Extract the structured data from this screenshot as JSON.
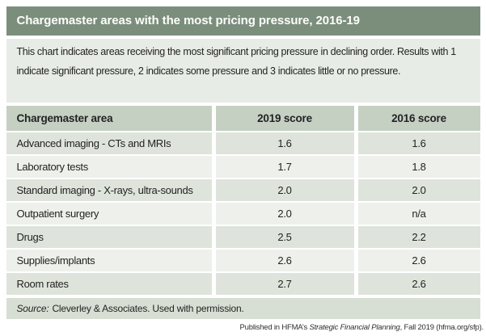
{
  "title": "Chargemaster areas with the most pricing pressure, 2016-19",
  "description": "This chart indicates areas receiving the most significant pricing pressure in declining order. Results with 1 indicate significant pressure, 2 indicates some pressure and 3 indicates little or no pressure.",
  "table": {
    "headers": [
      "Chargemaster area",
      "2019 score",
      "2016 score"
    ],
    "rows": [
      {
        "area": "Advanced imaging - CTs and MRIs",
        "score_2019": "1.6",
        "score_2016": "1.6"
      },
      {
        "area": "Laboratory tests",
        "score_2019": "1.7",
        "score_2016": "1.8"
      },
      {
        "area": "Standard imaging - X-rays, ultra-sounds",
        "score_2019": "2.0",
        "score_2016": "2.0"
      },
      {
        "area": "Outpatient surgery",
        "score_2019": "2.0",
        "score_2016": "n/a"
      },
      {
        "area": "Drugs",
        "score_2019": "2.5",
        "score_2016": "2.2"
      },
      {
        "area": "Supplies/implants",
        "score_2019": "2.6",
        "score_2016": "2.6"
      },
      {
        "area": "Room rates",
        "score_2019": "2.7",
        "score_2016": "2.6"
      }
    ]
  },
  "source": {
    "label": "Source:",
    "text": "Cleverley & Associates. Used with permission."
  },
  "footer": {
    "prefix": "Published in HFMA’s ",
    "italic": "Strategic Financial Planning",
    "suffix": ", Fall 2019 (hfma.org/sfp)."
  },
  "colors": {
    "title_bg": "#7b8e7c",
    "title_text": "#fdfdfb",
    "description_bg": "#e8ece6",
    "header_row_bg": "#c5d0c3",
    "row_dark_bg": "#dee4db",
    "row_light_bg": "#eef0ec",
    "source_bg": "#d7ded4",
    "text": "#232323"
  },
  "chart_data": {
    "type": "table",
    "title": "Chargemaster areas with the most pricing pressure, 2016-19",
    "subtitle": "This chart indicates areas receiving the most significant pricing pressure in declining order. Results with 1 indicate significant pressure, 2 indicates some pressure and 3 indicates little or no pressure.",
    "columns": [
      "Chargemaster area",
      "2019 score",
      "2016 score"
    ],
    "rows": [
      [
        "Advanced imaging - CTs and MRIs",
        1.6,
        1.6
      ],
      [
        "Laboratory tests",
        1.7,
        1.8
      ],
      [
        "Standard imaging - X-rays, ultra-sounds",
        2.0,
        2.0
      ],
      [
        "Outpatient surgery",
        2.0,
        "n/a"
      ],
      [
        "Drugs",
        2.5,
        2.2
      ],
      [
        "Supplies/implants",
        2.6,
        2.6
      ],
      [
        "Room rates",
        2.7,
        2.6
      ]
    ],
    "score_scale": "1 = significant pressure, 2 = some pressure, 3 = little or no pressure",
    "source": "Cleverley & Associates. Used with permission.",
    "publication": "Published in HFMA’s Strategic Financial Planning, Fall 2019 (hfma.org/sfp)."
  }
}
